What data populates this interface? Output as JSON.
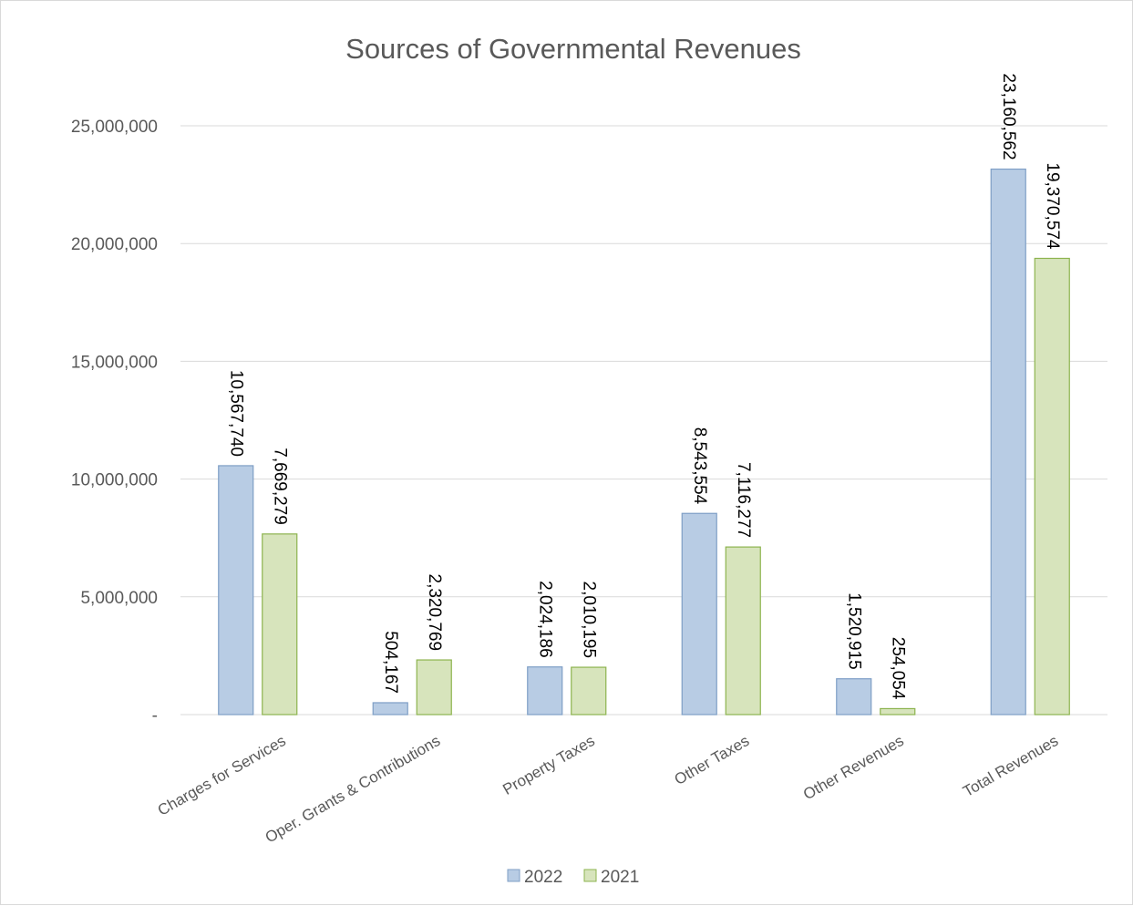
{
  "chart_data": {
    "type": "bar",
    "title": "Sources of Governmental Revenues",
    "categories": [
      "Charges for Services",
      "Oper. Grants & Contributions",
      "Property Taxes",
      "Other Taxes",
      "Other Revenues",
      "Total Revenues"
    ],
    "series": [
      {
        "name": "2022",
        "values": [
          10567740,
          504167,
          2024186,
          8543554,
          1520915,
          23160562
        ],
        "labels": [
          "10,567,740",
          "504,167",
          "2,024,186",
          "8,543,554",
          "1,520,915",
          "23,160,562"
        ],
        "color": "#b8cce4",
        "stroke": "#7f9fc6"
      },
      {
        "name": "2021",
        "values": [
          7669279,
          2320769,
          2010195,
          7116277,
          254054,
          19370574
        ],
        "labels": [
          "7,669,279",
          "2,320,769",
          "2,010,195",
          "7,116,277",
          "254,054",
          "19,370,574"
        ],
        "color": "#d7e4bc",
        "stroke": "#8db44f"
      }
    ],
    "ylim": [
      0,
      25000000
    ],
    "yticks": [
      0,
      5000000,
      10000000,
      15000000,
      20000000,
      25000000
    ],
    "ytick_labels": [
      "-",
      "5,000,000",
      "10,000,000",
      "15,000,000",
      "20,000,000",
      "25,000,000"
    ],
    "grid": true,
    "legend": "bottom"
  }
}
